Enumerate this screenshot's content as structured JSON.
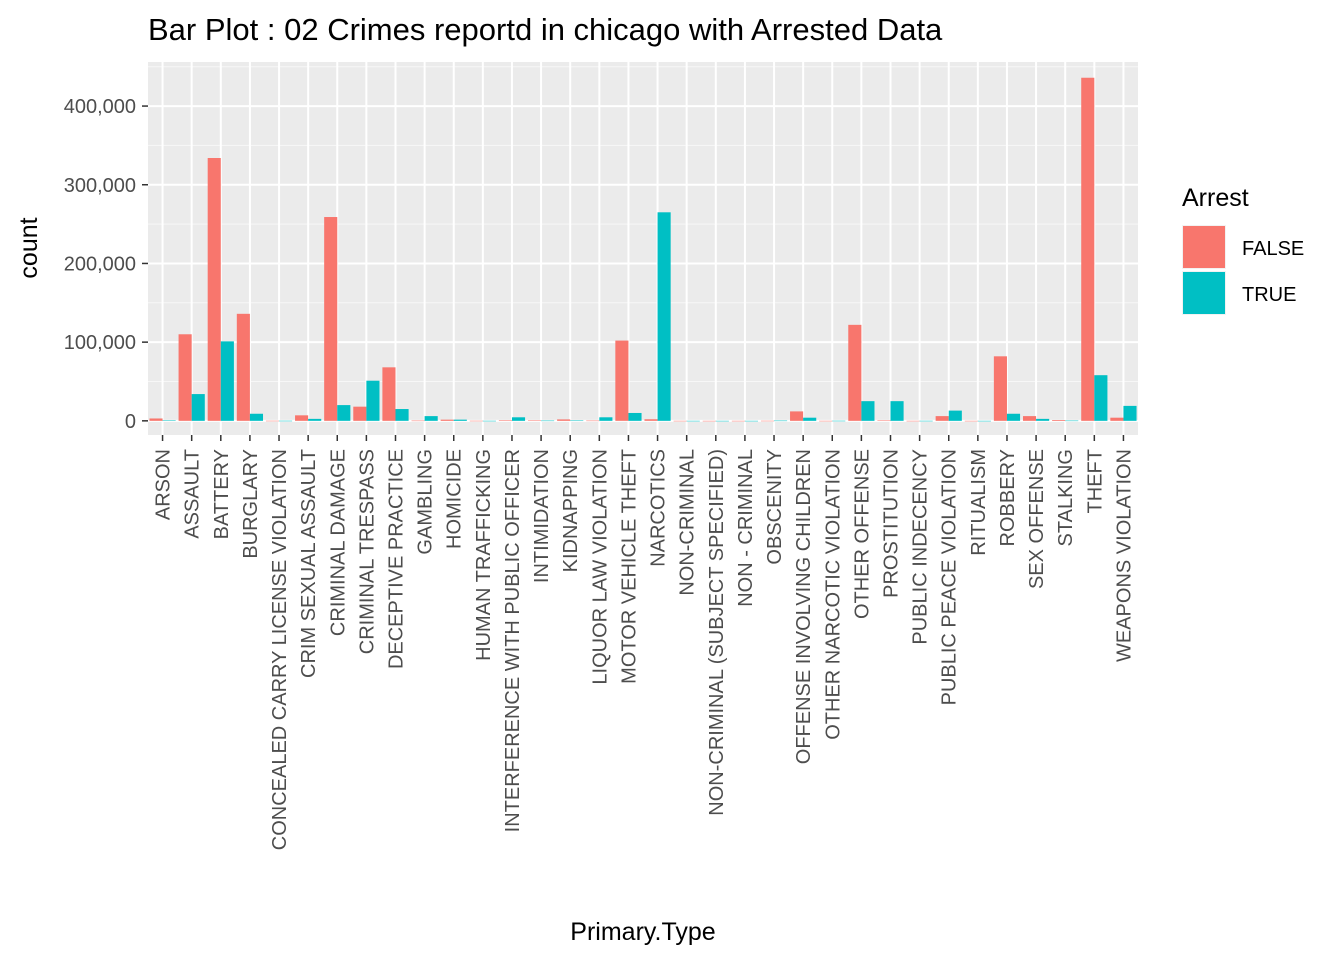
{
  "chart_data": {
    "type": "bar",
    "title": "Bar Plot : 02 Crimes reportd in chicago with Arrested Data",
    "xlabel": "Primary.Type",
    "ylabel": "count",
    "ylim": [
      -18000,
      456000
    ],
    "yticks": [
      0,
      100000,
      200000,
      300000,
      400000
    ],
    "ytick_labels": [
      "0",
      "100,000",
      "200,000",
      "300,000",
      "400,000"
    ],
    "grid": true,
    "legend": {
      "title": "Arrest",
      "placement": "right"
    },
    "categories": [
      "ARSON",
      "ASSAULT",
      "BATTERY",
      "BURGLARY",
      "CONCEALED CARRY LICENSE VIOLATION",
      "CRIM SEXUAL ASSAULT",
      "CRIMINAL DAMAGE",
      "CRIMINAL TRESPASS",
      "DECEPTIVE PRACTICE",
      "GAMBLING",
      "HOMICIDE",
      "HUMAN TRAFFICKING",
      "INTERFERENCE WITH PUBLIC OFFICER",
      "INTIMIDATION",
      "KIDNAPPING",
      "LIQUOR LAW VIOLATION",
      "MOTOR VEHICLE THEFT",
      "NARCOTICS",
      "NON-CRIMINAL",
      "NON-CRIMINAL (SUBJECT SPECIFIED)",
      "NON - CRIMINAL",
      "OBSCENITY",
      "OFFENSE INVOLVING CHILDREN",
      "OTHER NARCOTIC VIOLATION",
      "OTHER OFFENSE",
      "PROSTITUTION",
      "PUBLIC INDECENCY",
      "PUBLIC PEACE VIOLATION",
      "RITUALISM",
      "ROBBERY",
      "SEX OFFENSE",
      "STALKING",
      "THEFT",
      "WEAPONS VIOLATION"
    ],
    "series": [
      {
        "name": "FALSE",
        "color": "#F8766D",
        "values": [
          3000,
          110000,
          334000,
          136000,
          100,
          7000,
          259000,
          18000,
          68000,
          300,
          1500,
          100,
          700,
          600,
          1800,
          300,
          102000,
          2000,
          30,
          5,
          20,
          100,
          12000,
          30,
          122000,
          500,
          20,
          6000,
          10,
          82000,
          6000,
          1000,
          436000,
          4000
        ]
      },
      {
        "name": "TRUE",
        "color": "#00BFC4",
        "values": [
          500,
          34000,
          101000,
          9000,
          100,
          2500,
          20000,
          51000,
          15000,
          6000,
          1500,
          50,
          4500,
          300,
          400,
          4500,
          10000,
          265000,
          20,
          5,
          10,
          300,
          4000,
          100,
          25000,
          25000,
          50,
          13000,
          10,
          9000,
          2500,
          300,
          58000,
          19000
        ]
      }
    ]
  }
}
